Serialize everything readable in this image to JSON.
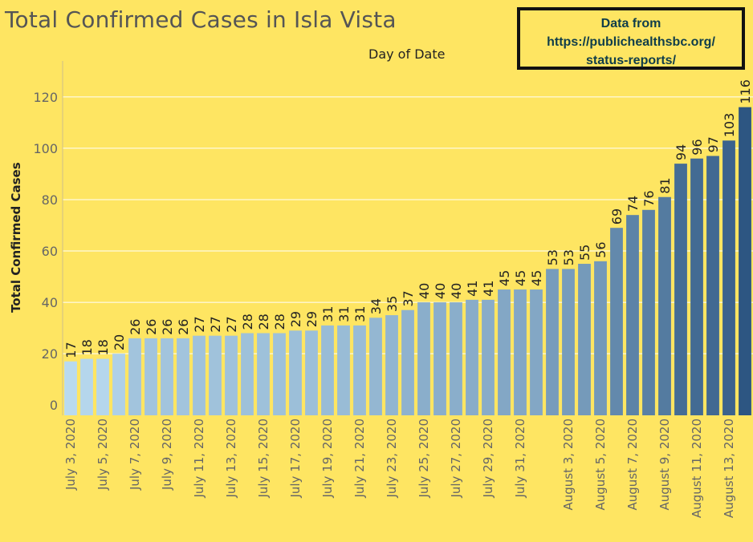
{
  "header": {
    "title": "Total Confirmed Cases in Isla Vista",
    "subtitle": "Day of Date"
  },
  "source_box": {
    "line1": "Data from",
    "line2": "https://publichealthsbc.org/",
    "line3": "status-reports/"
  },
  "colors": {
    "background": "#fee562",
    "bar_light": "#b9daef",
    "bar_dark": "#2d5682",
    "gridline": "#ffffff"
  },
  "chart_data": {
    "type": "bar",
    "title": "Total Confirmed Cases in Isla Vista",
    "xlabel": "Day of Date",
    "ylabel": "Total Confirmed Cases",
    "ylim": [
      -4,
      134
    ],
    "yticks": [
      0,
      20,
      40,
      60,
      80,
      100,
      120
    ],
    "grid": "horizontal",
    "categories": [
      "July 3, 2020",
      "July 4, 2020",
      "July 5, 2020",
      "July 6, 2020",
      "July 7, 2020",
      "July 8, 2020",
      "July 9, 2020",
      "July 10, 2020",
      "July 11, 2020",
      "July 12, 2020",
      "July 13, 2020",
      "July 14, 2020",
      "July 15, 2020",
      "July 16, 2020",
      "July 17, 2020",
      "July 18, 2020",
      "July 19, 2020",
      "July 20, 2020",
      "July 21, 2020",
      "July 22, 2020",
      "July 23, 2020",
      "July 24, 2020",
      "July 25, 2020",
      "July 26, 2020",
      "July 27, 2020",
      "July 28, 2020",
      "July 29, 2020",
      "July 30, 2020",
      "July 31, 2020",
      "August 1, 2020",
      "August 2, 2020",
      "August 3, 2020",
      "August 4, 2020",
      "August 5, 2020",
      "August 6, 2020",
      "August 7, 2020",
      "August 8, 2020",
      "August 9, 2020",
      "August 10, 2020",
      "August 11, 2020",
      "August 12, 2020",
      "August 13, 2020",
      "August 14, 2020"
    ],
    "values": [
      17,
      18,
      18,
      20,
      26,
      26,
      26,
      26,
      27,
      27,
      27,
      28,
      28,
      28,
      29,
      29,
      31,
      31,
      31,
      34,
      35,
      37,
      40,
      40,
      40,
      41,
      41,
      45,
      45,
      45,
      53,
      53,
      55,
      56,
      69,
      74,
      76,
      81,
      94,
      96,
      97,
      103,
      116
    ],
    "x_tick_labels": [
      "July 3, 2020",
      "July 5, 2020",
      "July 7, 2020",
      "July 9, 2020",
      "July 11, 2020",
      "July 13, 2020",
      "July 15, 2020",
      "July 17, 2020",
      "July 19, 2020",
      "July 21, 2020",
      "July 23, 2020",
      "July 25, 2020",
      "July 27, 2020",
      "July 29, 2020",
      "July 31, 2020",
      "August 3, 2020",
      "August 5, 2020",
      "August 7, 2020",
      "August 9, 2020",
      "August 11, 2020",
      "August 13, 2020"
    ]
  }
}
